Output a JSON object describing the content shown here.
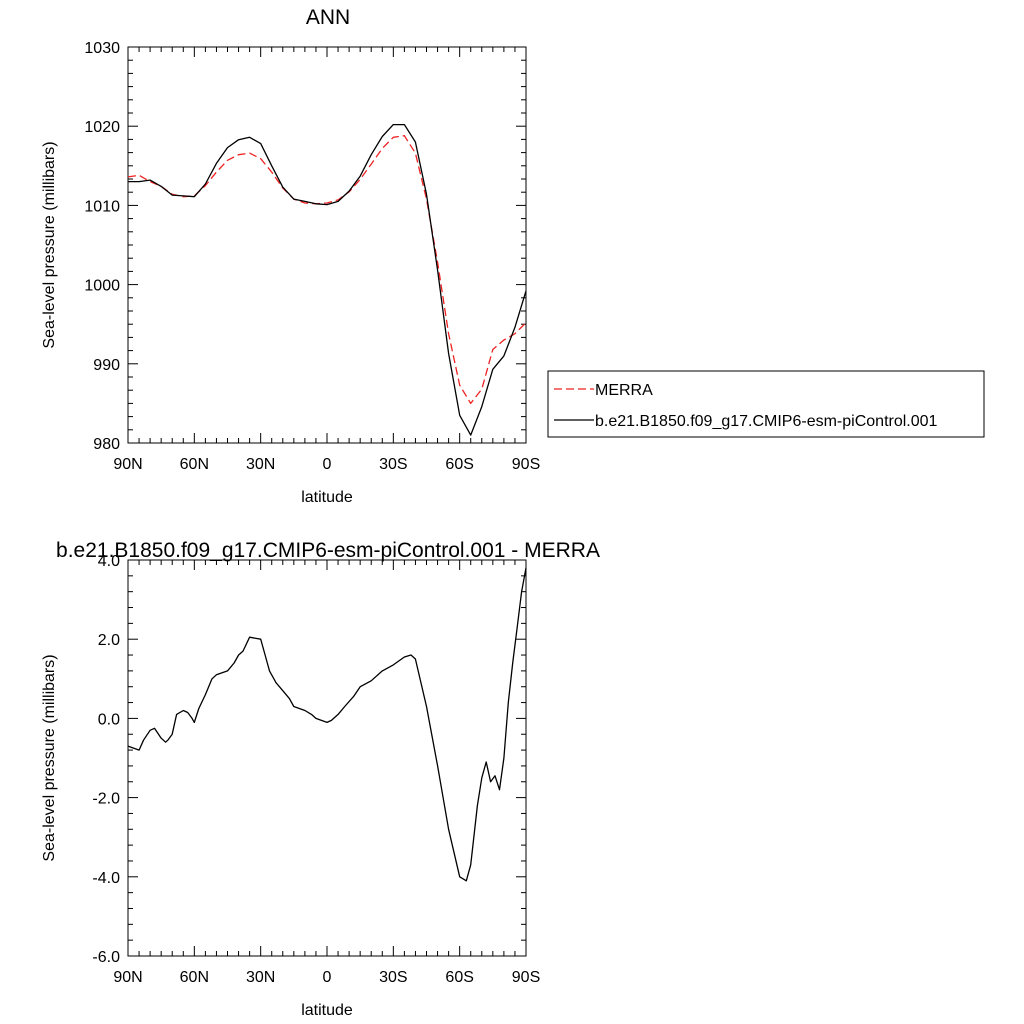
{
  "chart_data": [
    {
      "type": "line",
      "title": "ANN",
      "xlabel": "latitude",
      "ylabel": "Sea-level pressure (millibars)",
      "xlim": [
        90,
        -90
      ],
      "ylim": [
        980,
        1030
      ],
      "x_ticks": [
        90,
        60,
        30,
        0,
        -30,
        -60,
        -90
      ],
      "x_tick_labels": [
        "90N",
        "60N",
        "30N",
        "0",
        "30S",
        "60S",
        "90S"
      ],
      "y_ticks": [
        980,
        990,
        1000,
        1010,
        1020,
        1030
      ],
      "y_tick_labels": [
        "980",
        "990",
        "1000",
        "1010",
        "1020",
        "1030"
      ],
      "legend_position": "outside-right",
      "series": [
        {
          "name": "MERRA",
          "style": "dashed",
          "color": "#ee2222",
          "x": [
            90,
            85,
            80,
            75,
            70,
            65,
            60,
            55,
            50,
            45,
            40,
            35,
            30,
            25,
            20,
            15,
            10,
            5,
            0,
            -5,
            -10,
            -15,
            -20,
            -25,
            -30,
            -35,
            -40,
            -45,
            -50,
            -55,
            -60,
            -65,
            -70,
            -75,
            -80,
            -85,
            -90
          ],
          "y": [
            1013.6,
            1013.8,
            1013.0,
            1012.4,
            1011.4,
            1011.1,
            1011.2,
            1012.5,
            1014.2,
            1015.7,
            1016.4,
            1016.6,
            1015.9,
            1014.2,
            1012.2,
            1010.8,
            1010.3,
            1010.2,
            1010.3,
            1010.7,
            1011.7,
            1013.3,
            1015.2,
            1017.2,
            1018.6,
            1018.8,
            1016.6,
            1010.8,
            1002.8,
            993.8,
            987.3,
            985.0,
            986.8,
            991.8,
            993.0,
            993.8,
            995.2
          ]
        },
        {
          "name": "b.e21.B1850.f09_g17.CMIP6-esm-piControl.001",
          "style": "solid",
          "color": "#000000",
          "x": [
            90,
            85,
            80,
            75,
            70,
            65,
            60,
            55,
            50,
            45,
            40,
            35,
            30,
            25,
            20,
            15,
            10,
            5,
            0,
            -5,
            -10,
            -15,
            -20,
            -25,
            -30,
            -35,
            -40,
            -45,
            -50,
            -55,
            -60,
            -65,
            -70,
            -75,
            -80,
            -85,
            -90
          ],
          "y": [
            1013.0,
            1013.0,
            1013.2,
            1012.4,
            1011.3,
            1011.2,
            1011.1,
            1012.7,
            1015.3,
            1017.3,
            1018.3,
            1018.6,
            1017.8,
            1015.0,
            1012.3,
            1010.8,
            1010.5,
            1010.2,
            1010.1,
            1010.5,
            1011.8,
            1013.7,
            1016.4,
            1018.7,
            1020.2,
            1020.2,
            1018.0,
            1011.4,
            1001.8,
            991.3,
            983.5,
            981.0,
            984.6,
            989.3,
            991.0,
            994.6,
            999.2
          ]
        }
      ]
    },
    {
      "type": "line",
      "title": "b.e21.B1850.f09_g17.CMIP6-esm-piControl.001 - MERRA",
      "xlabel": "latitude",
      "ylabel": "Sea-level pressure (millibars)",
      "xlim": [
        90,
        -90
      ],
      "ylim": [
        -6,
        4
      ],
      "x_ticks": [
        90,
        60,
        30,
        0,
        -30,
        -60,
        -90
      ],
      "x_tick_labels": [
        "90N",
        "60N",
        "30N",
        "0",
        "30S",
        "60S",
        "90S"
      ],
      "y_ticks": [
        -6,
        -4,
        -2,
        0,
        2,
        4
      ],
      "y_tick_labels": [
        "-6.0",
        "-4.0",
        "-2.0",
        "0.0",
        "2.0",
        "4.0"
      ],
      "series": [
        {
          "style": "solid",
          "color": "#000000",
          "x": [
            90,
            85,
            83,
            80,
            78,
            75,
            73,
            72,
            70,
            68,
            65,
            63,
            61,
            60,
            58,
            55,
            52,
            50,
            45,
            42,
            40,
            38,
            35,
            30,
            28,
            26,
            23,
            20,
            17,
            15,
            10,
            7,
            5,
            0,
            -2,
            -5,
            -8,
            -12,
            -15,
            -20,
            -25,
            -30,
            -35,
            -38,
            -40,
            -45,
            -50,
            -55,
            -60,
            -63,
            -65,
            -68,
            -70,
            -72,
            -74,
            -76,
            -78,
            -80,
            -82,
            -84,
            -86,
            -88,
            -90
          ],
          "y": [
            -0.7,
            -0.8,
            -0.55,
            -0.3,
            -0.25,
            -0.5,
            -0.6,
            -0.55,
            -0.4,
            0.1,
            0.2,
            0.15,
            0.0,
            -0.1,
            0.25,
            0.6,
            1.0,
            1.1,
            1.2,
            1.4,
            1.6,
            1.7,
            2.05,
            2.0,
            1.6,
            1.2,
            0.9,
            0.7,
            0.5,
            0.3,
            0.2,
            0.1,
            0.0,
            -0.1,
            -0.05,
            0.1,
            0.3,
            0.55,
            0.8,
            0.95,
            1.2,
            1.35,
            1.55,
            1.6,
            1.5,
            0.3,
            -1.2,
            -2.8,
            -4.0,
            -4.1,
            -3.7,
            -2.2,
            -1.5,
            -1.1,
            -1.6,
            -1.45,
            -1.8,
            -1.0,
            0.4,
            1.4,
            2.3,
            3.2,
            3.8
          ]
        }
      ]
    }
  ]
}
